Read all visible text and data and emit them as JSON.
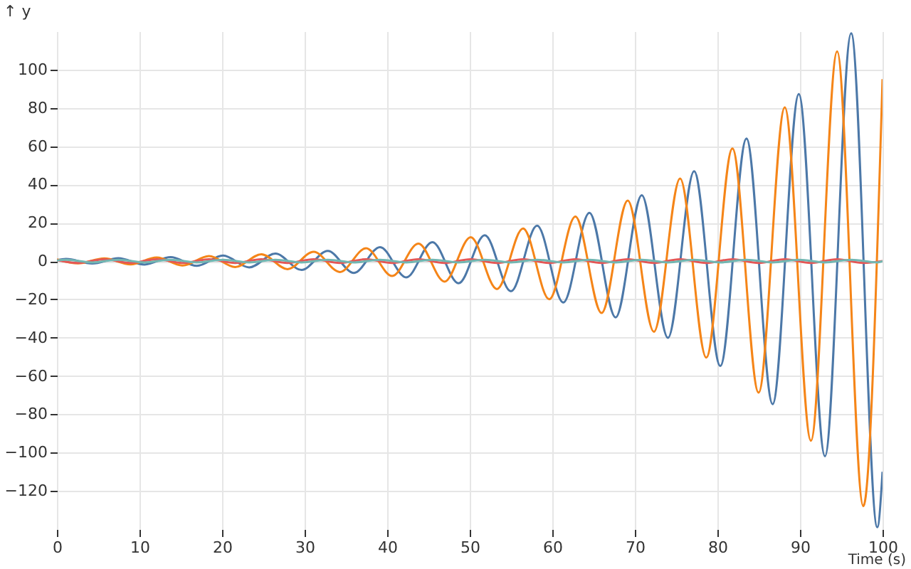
{
  "chart_data": {
    "type": "line",
    "xlabel": "Time (s)",
    "ylabel": "↑ y",
    "xlim": [
      0,
      100
    ],
    "xticks": [
      0,
      10,
      20,
      30,
      40,
      50,
      60,
      70,
      80,
      90,
      100
    ],
    "ylim": [
      -140,
      120
    ],
    "yticks": [
      -120,
      -100,
      -80,
      -60,
      -40,
      -20,
      0,
      20,
      40,
      60,
      80,
      100
    ],
    "grid": true,
    "series": [
      {
        "color": "#4c78a8",
        "x": [
          0,
          1.1,
          4.27,
          7.44,
          10.61,
          13.78,
          16.95,
          20.12,
          23.29,
          26.46,
          29.63,
          32.8,
          35.97,
          39.14,
          42.31,
          45.48,
          48.65,
          51.82,
          54.99,
          58.16,
          61.33,
          64.5,
          67.67,
          70.84,
          74.01,
          77.18,
          80.35,
          83.52,
          86.69,
          89.86,
          93.03,
          96.2,
          99.37,
          100
        ],
        "values": [
          0.5,
          1.1,
          -1.3,
          1.5,
          -1.8,
          2.1,
          -2.5,
          2.9,
          -3.3,
          3.9,
          -4.6,
          5.3,
          -6.2,
          7.3,
          -8.5,
          9.9,
          -11.6,
          13.5,
          -15.8,
          18.5,
          -21.6,
          25.2,
          -29.4,
          34.4,
          -40.1,
          46.9,
          -54.8,
          64.0,
          -74.7,
          87.2,
          -101.9,
          119,
          -139,
          -110
        ]
      },
      {
        "color": "#f58518",
        "x": [
          0,
          2.57,
          5.74,
          8.91,
          12.08,
          15.25,
          18.42,
          21.59,
          24.76,
          27.93,
          31.1,
          34.27,
          37.44,
          40.61,
          43.78,
          46.95,
          50.12,
          53.29,
          56.46,
          59.63,
          62.8,
          65.97,
          69.14,
          72.31,
          75.48,
          78.65,
          81.82,
          84.99,
          88.16,
          91.33,
          94.5,
          97.67,
          100
        ],
        "values": [
          0.9,
          -1.2,
          1.4,
          -1.7,
          1.9,
          -2.3,
          2.6,
          -3.1,
          3.6,
          -4.2,
          4.9,
          -5.7,
          6.7,
          -7.8,
          9.1,
          -10.7,
          12.5,
          -14.6,
          17.0,
          -19.9,
          23.2,
          -27.1,
          31.6,
          -36.9,
          43.1,
          -50.4,
          58.8,
          -68.7,
          80.3,
          -93.8,
          109.5,
          -128,
          95
        ]
      },
      {
        "color": "#e45756",
        "x": [
          0,
          2.57,
          5.74,
          8.91,
          12.08,
          15.25,
          18.42,
          21.59,
          24.76,
          27.93,
          31.1,
          34.27,
          37.44,
          40.61,
          43.78,
          46.95,
          50.12,
          53.29,
          56.46,
          59.63,
          62.8,
          65.97,
          69.14,
          72.31,
          75.48,
          78.65,
          81.82,
          84.99,
          88.16,
          91.33,
          94.5,
          97.67,
          100
        ],
        "values": [
          0.5,
          -1,
          1,
          -1,
          1,
          -1,
          1,
          -1,
          1,
          -1,
          1,
          -1,
          1,
          -1,
          1,
          -1,
          1,
          -1,
          1,
          -1,
          1,
          -1,
          1,
          -1,
          1,
          -1,
          1,
          -1,
          1,
          -1,
          1,
          -1,
          0
        ]
      },
      {
        "color": "#72b7b2",
        "x": [
          0,
          1.1,
          4.27,
          7.44,
          10.61,
          13.78,
          16.95,
          20.12,
          23.29,
          26.46,
          29.63,
          32.8,
          35.97,
          39.14,
          42.31,
          45.48,
          48.65,
          51.82,
          54.99,
          58.16,
          61.33,
          64.5,
          67.67,
          70.84,
          74.01,
          77.18,
          80.35,
          83.52,
          86.69,
          89.86,
          93.03,
          96.2,
          99.37,
          100
        ],
        "values": [
          0.3,
          0.7,
          -0.7,
          0.7,
          -0.7,
          0.7,
          -0.7,
          0.7,
          -0.7,
          0.7,
          -0.7,
          0.7,
          -0.7,
          0.7,
          -0.7,
          0.7,
          -0.7,
          0.7,
          -0.7,
          0.7,
          -0.7,
          0.7,
          -0.7,
          0.7,
          -0.7,
          0.7,
          -0.7,
          0.7,
          -0.7,
          0.7,
          -0.7,
          0.7,
          -0.7,
          0
        ]
      }
    ]
  }
}
